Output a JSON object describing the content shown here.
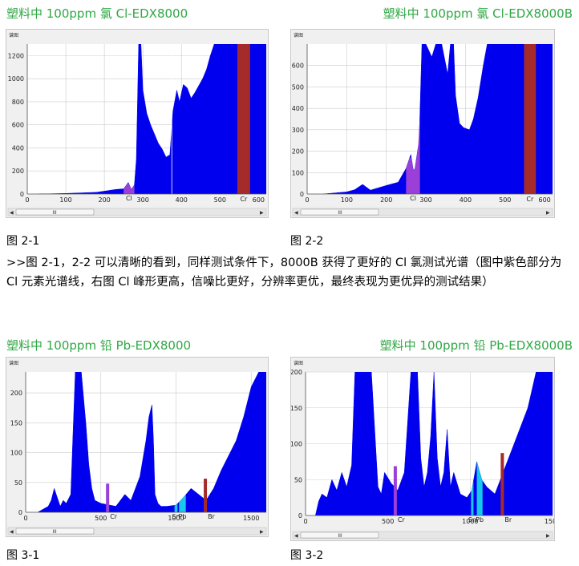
{
  "titles": {
    "t1": "塑料中 100ppm 氯 Cl-EDX8000",
    "t2": "塑料中 100ppm  氯 Cl-EDX8000B",
    "t3": "塑料中 100ppm 铅 Pb-EDX8000",
    "t4": "塑料中 100ppm 铅 Pb-EDX8000B"
  },
  "captions": {
    "c1": "图 2-1",
    "c2": "图 2-2",
    "c3": "图 3-1",
    "c4": "图 3-2"
  },
  "paragraph": ">>图 2-1，2-2 可以清晰的看到，同样测试条件下，8000B 获得了更好的 Cl 氯测试光谱（图中紫色部分为 Cl 元素光谱线，右图 Cl 峰形更高，信噪比更好，分辨率更优，最终表现为更优异的测试结果）",
  "panel_header": "谱图",
  "scroll_thumb": "III",
  "colors": {
    "spectrum": "#0000ee",
    "cl_peak": "#9a3fd8",
    "cr_band": "#a52a2a",
    "pb_peak": "#18c8ea",
    "grid": "#cccccc",
    "title_green": "#2fa845"
  },
  "chart_data": [
    {
      "type": "area",
      "id": "fig-2-1",
      "xlim": [
        0,
        620
      ],
      "ylim": [
        0,
        1300
      ],
      "xticks": [
        0,
        100,
        200,
        300,
        400,
        500,
        600
      ],
      "yticks": [
        0,
        200,
        400,
        600,
        800,
        1000,
        1200
      ],
      "x": [
        30,
        100,
        180,
        230,
        250,
        262,
        270,
        278,
        283,
        289,
        295,
        300,
        310,
        320,
        330,
        340,
        350,
        360,
        370,
        378,
        388,
        395,
        405,
        415,
        425,
        435,
        445,
        455,
        465,
        475,
        485,
        495,
        505,
        515,
        525,
        535,
        550,
        600,
        620
      ],
      "y": [
        0,
        5,
        15,
        40,
        45,
        100,
        40,
        80,
        300,
        1300,
        1300,
        900,
        700,
        600,
        520,
        440,
        390,
        320,
        340,
        720,
        900,
        800,
        950,
        920,
        830,
        880,
        940,
        1000,
        1080,
        1200,
        1300,
        1300,
        1300,
        1300,
        1300,
        1300,
        1300,
        1300,
        1300
      ],
      "highlight": {
        "label": "Cl",
        "x_range": [
          250,
          278
        ]
      },
      "band": {
        "label": "Cr",
        "x_range": [
          545,
          578
        ]
      },
      "marker_line_x": 375
    },
    {
      "type": "area",
      "id": "fig-2-2",
      "xlim": [
        0,
        620
      ],
      "ylim": [
        0,
        700
      ],
      "xticks": [
        0,
        100,
        200,
        300,
        400,
        500,
        600
      ],
      "yticks": [
        0,
        100,
        200,
        300,
        400,
        500,
        600
      ],
      "x": [
        40,
        100,
        120,
        140,
        160,
        200,
        230,
        250,
        262,
        270,
        283,
        290,
        300,
        315,
        325,
        340,
        355,
        362,
        370,
        375,
        385,
        395,
        410,
        420,
        432,
        445,
        455,
        465,
        475,
        490,
        510,
        540,
        620
      ],
      "y": [
        0,
        10,
        20,
        45,
        18,
        40,
        55,
        120,
        185,
        90,
        250,
        700,
        700,
        640,
        700,
        700,
        560,
        700,
        700,
        460,
        330,
        310,
        300,
        350,
        450,
        600,
        700,
        700,
        700,
        700,
        700,
        700,
        700
      ],
      "highlight": {
        "label": "Cl",
        "x_range": [
          250,
          285
        ]
      },
      "band": {
        "label": "Cr",
        "x_range": [
          548,
          578
        ]
      }
    },
    {
      "type": "area",
      "id": "fig-3-1",
      "xlim": [
        0,
        1600
      ],
      "ylim": [
        0,
        235
      ],
      "xticks": [
        0,
        500,
        1000,
        1500
      ],
      "yticks": [
        0,
        50,
        100,
        150,
        200
      ],
      "x": [
        80,
        150,
        170,
        190,
        210,
        230,
        250,
        270,
        300,
        330,
        350,
        370,
        400,
        420,
        440,
        460,
        500,
        560,
        600,
        660,
        700,
        760,
        800,
        820,
        840,
        850,
        860,
        880,
        900,
        940,
        1000,
        1050,
        1100,
        1150,
        1200,
        1250,
        1300,
        1350,
        1400,
        1450,
        1500,
        1550,
        1600
      ],
      "y": [
        0,
        10,
        20,
        40,
        25,
        10,
        20,
        15,
        30,
        235,
        235,
        235,
        150,
        80,
        40,
        20,
        15,
        12,
        10,
        30,
        20,
        60,
        120,
        160,
        180,
        120,
        30,
        15,
        10,
        10,
        12,
        25,
        40,
        30,
        20,
        40,
        70,
        95,
        120,
        160,
        210,
        235,
        235
      ],
      "highlights": [
        {
          "label": "Pb",
          "x_range": [
            1020,
            1065
          ],
          "color_key": "pb_peak"
        },
        {
          "label": "Sn",
          "x_range": [
            990,
            1010
          ],
          "color_key": "pb_peak"
        }
      ],
      "markers": [
        {
          "label": "Cr",
          "x": 545
        },
        {
          "label": "Br",
          "x": 1195
        }
      ]
    },
    {
      "type": "area",
      "id": "fig-3-2",
      "xlim": [
        0,
        1500
      ],
      "ylim": [
        0,
        200
      ],
      "xticks": [
        0,
        500,
        1000,
        1500
      ],
      "yticks": [
        0,
        50,
        100,
        150,
        200
      ],
      "x": [
        60,
        80,
        100,
        130,
        160,
        190,
        220,
        250,
        280,
        300,
        320,
        360,
        400,
        420,
        440,
        460,
        480,
        520,
        560,
        600,
        640,
        680,
        700,
        720,
        740,
        760,
        780,
        800,
        820,
        840,
        860,
        880,
        900,
        940,
        980,
        1010,
        1040,
        1070,
        1100,
        1150,
        1200,
        1250,
        1300,
        1350,
        1400,
        1450,
        1500
      ],
      "y": [
        0,
        20,
        30,
        25,
        50,
        35,
        60,
        40,
        70,
        200,
        200,
        200,
        200,
        120,
        40,
        30,
        60,
        45,
        35,
        60,
        200,
        200,
        80,
        40,
        60,
        110,
        200,
        80,
        40,
        60,
        120,
        40,
        60,
        30,
        25,
        35,
        75,
        50,
        40,
        30,
        60,
        90,
        120,
        150,
        200,
        200,
        200
      ],
      "highlights": [
        {
          "label": "Pb",
          "x_range": [
            1040,
            1075
          ],
          "color_key": "pb_peak"
        },
        {
          "label": "Sn",
          "x_range": [
            1005,
            1020
          ],
          "color_key": "pb_peak"
        }
      ],
      "markers": [
        {
          "label": "Cr",
          "x": 545
        },
        {
          "label": "Br",
          "x": 1195
        }
      ]
    }
  ]
}
